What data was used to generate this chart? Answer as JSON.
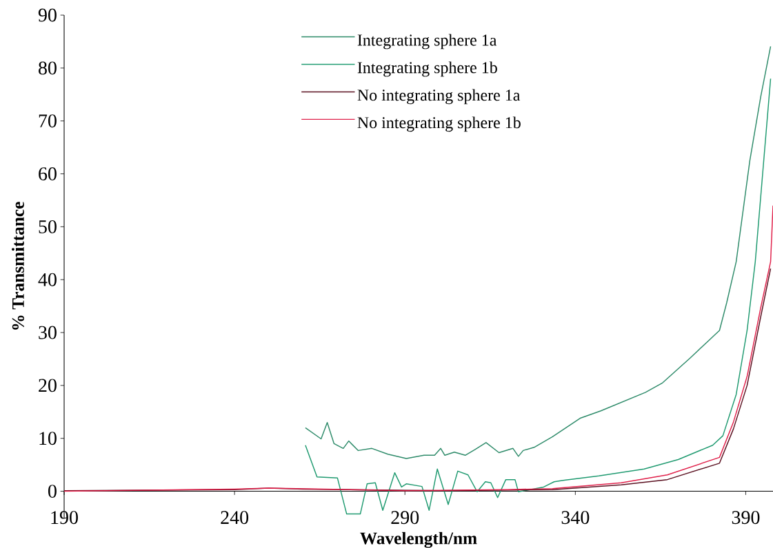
{
  "chart_data": {
    "type": "line",
    "xlabel": "Wavelength/nm",
    "ylabel": "% Transmittance",
    "xlim": [
      190,
      398
    ],
    "ylim": [
      -5,
      90
    ],
    "xticks": [
      190,
      240,
      290,
      340,
      390
    ],
    "yticks": [
      0,
      10,
      20,
      30,
      40,
      50,
      60,
      70,
      80,
      90
    ],
    "legend": "top",
    "series": [
      {
        "name": "Integrating sphere 1a",
        "color": "#2e8b6a",
        "x": [
          260.8,
          265.4,
          267.2,
          269.2,
          271.9,
          273.5,
          276.3,
          280.3,
          285.0,
          290.4,
          295.6,
          298.7,
          300.5,
          301.7,
          304.5,
          307.7,
          310.6,
          313.8,
          317.6,
          321.7,
          323.3,
          324.7,
          327.9,
          333.3,
          341.4,
          347.5,
          360.6,
          365.6,
          373.7,
          382.3,
          384.4,
          387.2,
          391.2,
          394.4,
          397.3
        ],
        "values": [
          12.0,
          9.9,
          13.0,
          9.0,
          8.1,
          9.5,
          7.7,
          8.1,
          7.0,
          6.2,
          6.8,
          6.8,
          8.1,
          6.8,
          7.4,
          6.8,
          7.9,
          9.2,
          7.3,
          8.1,
          6.6,
          7.7,
          8.3,
          10.3,
          13.8,
          15.2,
          18.7,
          20.5,
          25.2,
          30.4,
          35.6,
          43.4,
          62.5,
          74.6,
          84.1
        ]
      },
      {
        "name": "Integrating sphere 1b",
        "color": "#1f9a70",
        "x": [
          260.8,
          264.2,
          270.2,
          272.9,
          276.9,
          278.9,
          281.3,
          283.5,
          287.0,
          289.0,
          290.4,
          295.0,
          297.1,
          299.5,
          302.7,
          305.5,
          308.5,
          311.2,
          313.6,
          315.2,
          317.2,
          319.6,
          322.3,
          323.3,
          330.7,
          333.8,
          336.8,
          346.9,
          360.2,
          370.2,
          380.3,
          383.3,
          387.2,
          390.4,
          392.8,
          397.3
        ],
        "values": [
          8.7,
          2.7,
          2.5,
          -4.3,
          -4.3,
          1.4,
          1.6,
          -3.6,
          3.5,
          0.8,
          1.4,
          0.9,
          -3.6,
          4.2,
          -2.5,
          3.8,
          3.1,
          -0.1,
          1.8,
          1.6,
          -1.2,
          2.2,
          2.2,
          -0.1,
          0.8,
          1.8,
          2.1,
          2.9,
          4.2,
          6.0,
          8.7,
          10.5,
          18.3,
          30.4,
          43.4,
          78.0
        ]
      },
      {
        "name": "No integrating sphere 1a",
        "color": "#5a1020",
        "x": [
          190,
          240,
          250,
          260,
          300,
          333.3,
          353.5,
          367.0,
          382.3,
          386.4,
          390.4,
          394.4,
          397.3
        ],
        "values": [
          0.1,
          0.3,
          0.6,
          0.4,
          0.1,
          0.3,
          1.2,
          2.2,
          5.3,
          11.8,
          20.0,
          33.0,
          42.1
        ]
      },
      {
        "name": "No integrating sphere 1b",
        "color": "#e0204a",
        "x": [
          190,
          240,
          250,
          290,
          320,
          333.3,
          353.5,
          367.0,
          382.3,
          386.4,
          390.4,
          394.4,
          397.3,
          398
        ],
        "values": [
          0.0,
          0.4,
          0.6,
          0.1,
          0.3,
          0.5,
          1.6,
          3.1,
          6.4,
          13.1,
          21.7,
          34.7,
          43.4,
          54.0
        ]
      }
    ]
  }
}
